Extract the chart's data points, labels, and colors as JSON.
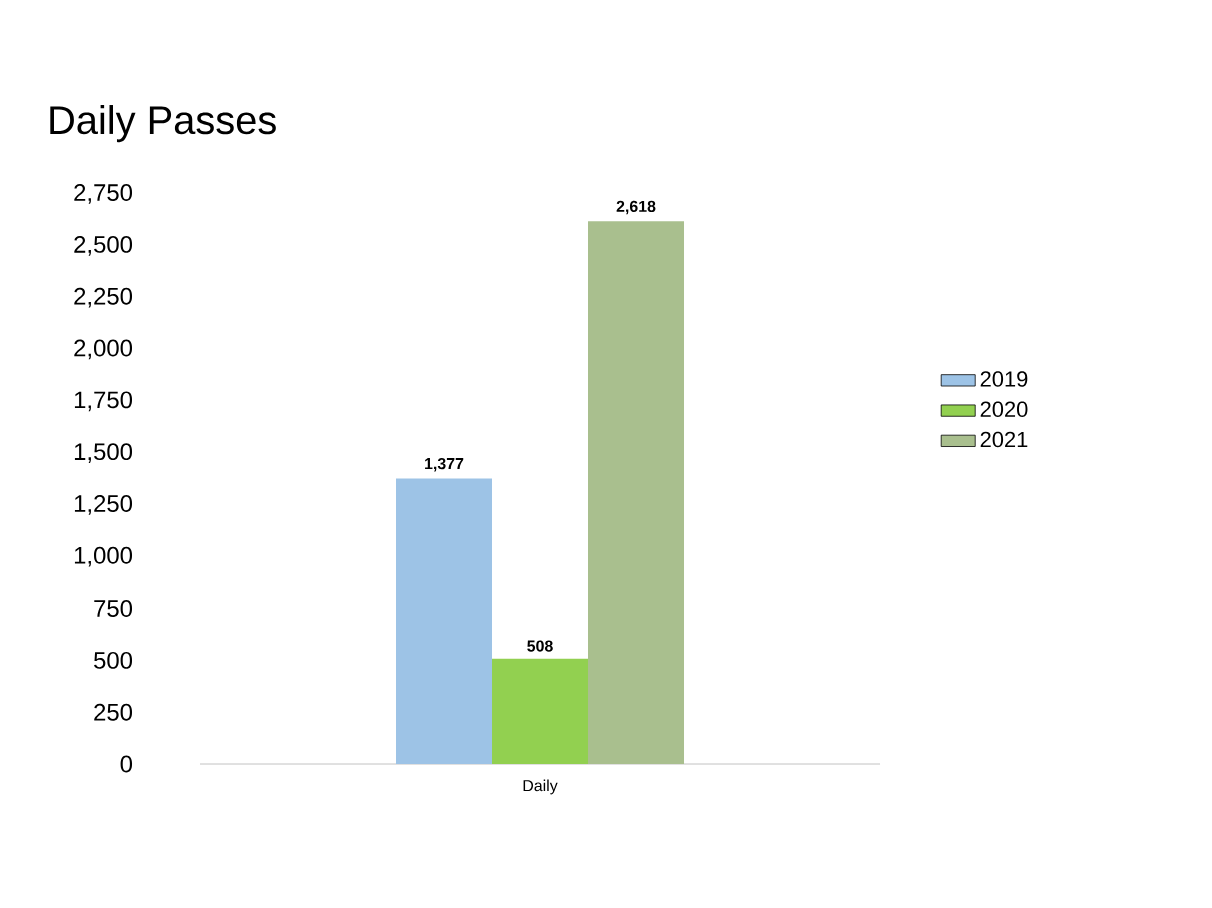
{
  "chart_data": {
    "type": "bar",
    "title": "Daily Passes",
    "categories": [
      "Daily"
    ],
    "series": [
      {
        "name": "2019",
        "color": "#9dc3e6",
        "values": [
          1377
        ],
        "value_labels": [
          "1,377"
        ]
      },
      {
        "name": "2020",
        "color": "#92d050",
        "values": [
          508
        ],
        "value_labels": [
          "508"
        ]
      },
      {
        "name": "2021",
        "color": "#a9bf8e",
        "values": [
          2618
        ],
        "value_labels": [
          "2,618"
        ]
      }
    ],
    "ylim": [
      0,
      2750
    ],
    "yticks": [
      0,
      250,
      500,
      750,
      {
        "value": 1000,
        "label": "1,000"
      },
      {
        "value": 1250,
        "label": "1,250"
      },
      {
        "value": 1500,
        "label": "1,500"
      },
      {
        "value": 1750,
        "label": "1,750"
      },
      {
        "value": 2000,
        "label": "2,000"
      },
      {
        "value": 2250,
        "label": "2,250"
      },
      {
        "value": 2500,
        "label": "2,500"
      },
      {
        "value": 2750,
        "label": "2,750"
      }
    ],
    "legend": "right"
  }
}
